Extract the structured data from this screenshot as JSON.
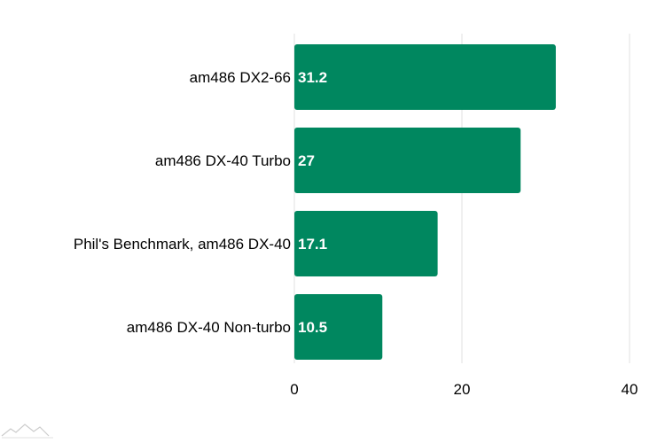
{
  "chart_data": {
    "type": "bar",
    "orientation": "horizontal",
    "categories": [
      "am486 DX2-66",
      "am486 DX-40 Turbo",
      "Phil's Benchmark, am486 DX-40",
      "am486 DX-40 Non-turbo"
    ],
    "values": [
      31.2,
      27,
      17.1,
      10.5
    ],
    "value_labels": [
      "31.2",
      "27",
      "17.1",
      "10.5"
    ],
    "x_ticks": [
      0,
      20,
      40
    ],
    "x_tick_labels": [
      "0",
      "20",
      "40"
    ],
    "xlim": [
      0,
      40
    ],
    "grid": true,
    "legend": "none",
    "bar_color": "#00875f"
  },
  "logo": {
    "icon": "mountain-logo-icon",
    "color": "#c8c8c8"
  }
}
